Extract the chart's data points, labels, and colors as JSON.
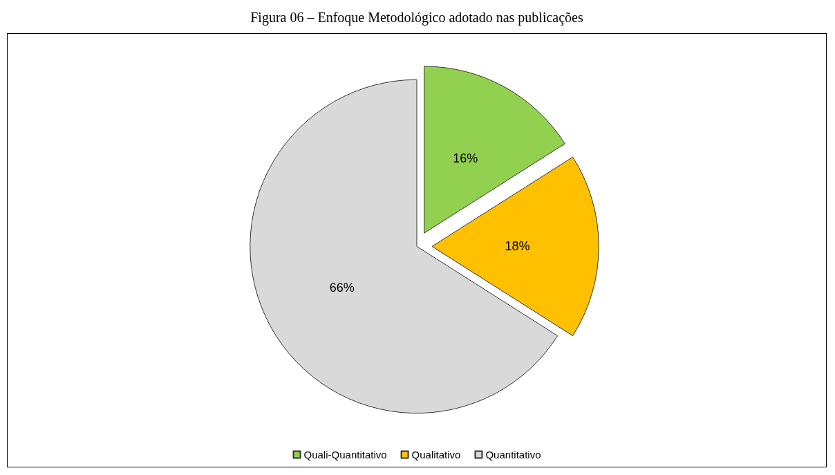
{
  "chart_data": {
    "type": "pie",
    "title": "Figura 06 – Enfoque Metodológico adotado nas publicações",
    "categories": [
      "Quali-Quantitativo",
      "Qualitativo",
      "Quantitativo"
    ],
    "values": [
      16,
      18,
      66
    ],
    "colors": [
      "#92d050",
      "#ffc000",
      "#d9d9d9"
    ],
    "value_labels": [
      "16%",
      "18%",
      "66%"
    ],
    "legend": "bottom"
  }
}
